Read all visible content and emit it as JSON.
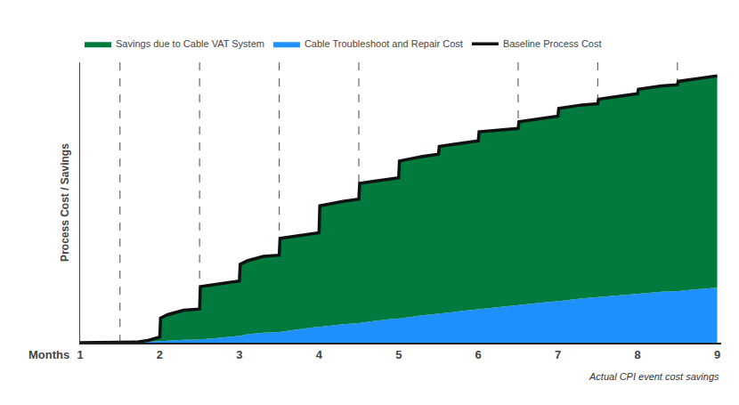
{
  "chart_data": {
    "type": "area",
    "ylabel": "Process Cost / Savings",
    "xlabel": "Months",
    "annotation": "Actual CPI event cost savings",
    "x": [
      1.0,
      1.3,
      1.5,
      1.7,
      1.85,
      2.0,
      2.01,
      2.1,
      2.3,
      2.5,
      2.51,
      2.7,
      2.9,
      3.0,
      3.01,
      3.1,
      3.3,
      3.5,
      3.51,
      3.7,
      3.9,
      4.0,
      4.01,
      4.3,
      4.5,
      4.51,
      4.7,
      4.9,
      5.0,
      5.01,
      5.3,
      5.5,
      5.51,
      5.7,
      5.9,
      6.0,
      6.01,
      6.3,
      6.5,
      6.51,
      6.7,
      6.9,
      7.0,
      7.01,
      7.3,
      7.5,
      7.51,
      7.7,
      7.9,
      8.0,
      8.01,
      8.3,
      8.5,
      8.51,
      8.7,
      8.9,
      9.0
    ],
    "series": [
      {
        "name": "Savings due to Cable VAT System",
        "type": "area",
        "color": "#007A3D",
        "values": [
          0.0,
          0.0,
          0.0,
          0.005,
          0.02,
          0.05,
          0.22,
          0.25,
          0.29,
          0.3,
          0.5,
          0.52,
          0.54,
          0.55,
          0.7,
          0.73,
          0.77,
          0.78,
          0.93,
          0.95,
          0.97,
          0.98,
          1.22,
          1.26,
          1.28,
          1.42,
          1.44,
          1.46,
          1.47,
          1.62,
          1.66,
          1.68,
          1.75,
          1.77,
          1.79,
          1.8,
          1.88,
          1.9,
          1.91,
          1.97,
          1.99,
          2.01,
          2.02,
          2.09,
          2.12,
          2.13,
          2.17,
          2.19,
          2.21,
          2.22,
          2.26,
          2.29,
          2.3,
          2.33,
          2.35,
          2.37,
          2.38
        ]
      },
      {
        "name": "Cable Troubleshoot and Repair Cost",
        "type": "area",
        "color": "#1E90FF",
        "values": [
          0.0,
          0.0,
          0.0,
          0.002,
          0.008,
          0.015,
          0.016,
          0.02,
          0.025,
          0.028,
          0.029,
          0.04,
          0.055,
          0.06,
          0.062,
          0.075,
          0.09,
          0.095,
          0.096,
          0.115,
          0.135,
          0.14,
          0.141,
          0.165,
          0.175,
          0.176,
          0.195,
          0.21,
          0.215,
          0.216,
          0.245,
          0.26,
          0.261,
          0.28,
          0.295,
          0.3,
          0.301,
          0.325,
          0.335,
          0.336,
          0.355,
          0.365,
          0.37,
          0.371,
          0.395,
          0.405,
          0.406,
          0.42,
          0.43,
          0.435,
          0.436,
          0.455,
          0.46,
          0.461,
          0.475,
          0.485,
          0.49
        ]
      },
      {
        "name": "Baseline Process Cost",
        "type": "line",
        "color": "#111111",
        "values": [
          0.0,
          0.0,
          0.0,
          0.005,
          0.02,
          0.05,
          0.22,
          0.25,
          0.29,
          0.3,
          0.5,
          0.52,
          0.54,
          0.55,
          0.7,
          0.73,
          0.77,
          0.78,
          0.93,
          0.95,
          0.97,
          0.98,
          1.22,
          1.26,
          1.28,
          1.42,
          1.44,
          1.46,
          1.47,
          1.62,
          1.66,
          1.68,
          1.75,
          1.77,
          1.79,
          1.8,
          1.88,
          1.9,
          1.91,
          1.97,
          1.99,
          2.01,
          2.02,
          2.09,
          2.12,
          2.13,
          2.17,
          2.19,
          2.21,
          2.22,
          2.26,
          2.29,
          2.3,
          2.33,
          2.35,
          2.37,
          2.38
        ]
      }
    ],
    "vlines": [
      1.5,
      2.5,
      3.5,
      4.5,
      6.5,
      7.5,
      8.5
    ],
    "xlim": [
      1,
      9.05
    ],
    "xticks": [
      1,
      2,
      3,
      4,
      5,
      6,
      7,
      8,
      9
    ],
    "ylim": [
      0,
      2.5
    ],
    "tick_labels": "x",
    "grid": false,
    "legend": "upper left"
  }
}
